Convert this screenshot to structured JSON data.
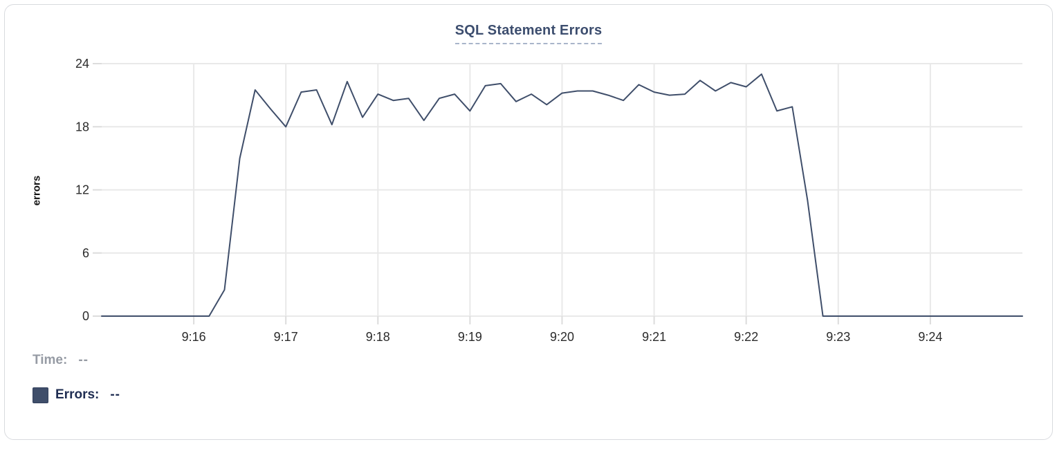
{
  "colors": {
    "line": "#3f4e6a",
    "gridline": "#e9e9e9",
    "tick_stub": "#dcdcdc",
    "tick_text": "#2b2b2b",
    "title": "#3c4d6e",
    "title_underline": "#a9b5ca",
    "legend_time": "#969ba4",
    "legend_errors": "#1f2d52",
    "card_border": "#d8dade"
  },
  "legend": {
    "time_label": "Time:",
    "time_value": "--",
    "errors_label": "Errors:",
    "errors_value": "--"
  },
  "chart_data": {
    "type": "line",
    "title": "SQL Statement Errors",
    "xlabel": "",
    "ylabel": "errors",
    "grid": true,
    "legend_position": "bottom-left",
    "ylim": [
      0,
      24
    ],
    "y_ticks": [
      0,
      6,
      12,
      18,
      24
    ],
    "x_ticks": [
      {
        "seconds": 60,
        "label": "9:16"
      },
      {
        "seconds": 120,
        "label": "9:17"
      },
      {
        "seconds": 180,
        "label": "9:18"
      },
      {
        "seconds": 240,
        "label": "9:19"
      },
      {
        "seconds": 300,
        "label": "9:20"
      },
      {
        "seconds": 360,
        "label": "9:21"
      },
      {
        "seconds": 420,
        "label": "9:22"
      },
      {
        "seconds": 480,
        "label": "9:23"
      },
      {
        "seconds": 540,
        "label": "9:24"
      }
    ],
    "x_domain": {
      "start": "9:15:00",
      "end": "9:25:00",
      "seconds": 600
    },
    "sample_interval_seconds": 10,
    "series": [
      {
        "name": "Errors",
        "points": [
          {
            "t": "9:15:00",
            "v": 0
          },
          {
            "t": "9:15:10",
            "v": 0
          },
          {
            "t": "9:15:20",
            "v": 0
          },
          {
            "t": "9:15:30",
            "v": 0
          },
          {
            "t": "9:15:40",
            "v": 0
          },
          {
            "t": "9:15:50",
            "v": 0
          },
          {
            "t": "9:16:00",
            "v": 0
          },
          {
            "t": "9:16:10",
            "v": 0
          },
          {
            "t": "9:16:20",
            "v": 2.5
          },
          {
            "t": "9:16:30",
            "v": 15
          },
          {
            "t": "9:16:40",
            "v": 21.5
          },
          {
            "t": "9:16:50",
            "v": 19.7
          },
          {
            "t": "9:17:00",
            "v": 18
          },
          {
            "t": "9:17:10",
            "v": 21.3
          },
          {
            "t": "9:17:20",
            "v": 21.5
          },
          {
            "t": "9:17:30",
            "v": 18.2
          },
          {
            "t": "9:17:40",
            "v": 22.3
          },
          {
            "t": "9:17:50",
            "v": 18.9
          },
          {
            "t": "9:18:00",
            "v": 21.1
          },
          {
            "t": "9:18:10",
            "v": 20.5
          },
          {
            "t": "9:18:20",
            "v": 20.7
          },
          {
            "t": "9:18:30",
            "v": 18.6
          },
          {
            "t": "9:18:40",
            "v": 20.7
          },
          {
            "t": "9:18:50",
            "v": 21.1
          },
          {
            "t": "9:19:00",
            "v": 19.5
          },
          {
            "t": "9:19:10",
            "v": 21.9
          },
          {
            "t": "9:19:20",
            "v": 22.1
          },
          {
            "t": "9:19:30",
            "v": 20.4
          },
          {
            "t": "9:19:40",
            "v": 21.1
          },
          {
            "t": "9:19:50",
            "v": 20.1
          },
          {
            "t": "9:20:00",
            "v": 21.2
          },
          {
            "t": "9:20:10",
            "v": 21.4
          },
          {
            "t": "9:20:20",
            "v": 21.4
          },
          {
            "t": "9:20:30",
            "v": 21.0
          },
          {
            "t": "9:20:40",
            "v": 20.5
          },
          {
            "t": "9:20:50",
            "v": 22.0
          },
          {
            "t": "9:21:00",
            "v": 21.3
          },
          {
            "t": "9:21:10",
            "v": 21.0
          },
          {
            "t": "9:21:20",
            "v": 21.1
          },
          {
            "t": "9:21:30",
            "v": 22.4
          },
          {
            "t": "9:21:40",
            "v": 21.4
          },
          {
            "t": "9:21:50",
            "v": 22.2
          },
          {
            "t": "9:22:00",
            "v": 21.8
          },
          {
            "t": "9:22:10",
            "v": 23.0
          },
          {
            "t": "9:22:20",
            "v": 19.5
          },
          {
            "t": "9:22:30",
            "v": 19.9
          },
          {
            "t": "9:22:40",
            "v": 11
          },
          {
            "t": "9:22:50",
            "v": 0
          },
          {
            "t": "9:23:00",
            "v": 0
          },
          {
            "t": "9:23:10",
            "v": 0
          },
          {
            "t": "9:23:20",
            "v": 0
          },
          {
            "t": "9:23:30",
            "v": 0
          },
          {
            "t": "9:23:40",
            "v": 0
          },
          {
            "t": "9:23:50",
            "v": 0
          },
          {
            "t": "9:24:00",
            "v": 0
          },
          {
            "t": "9:24:10",
            "v": 0
          },
          {
            "t": "9:24:20",
            "v": 0
          },
          {
            "t": "9:24:30",
            "v": 0
          },
          {
            "t": "9:24:40",
            "v": 0
          },
          {
            "t": "9:24:50",
            "v": 0
          },
          {
            "t": "9:25:00",
            "v": 0
          }
        ]
      }
    ]
  }
}
